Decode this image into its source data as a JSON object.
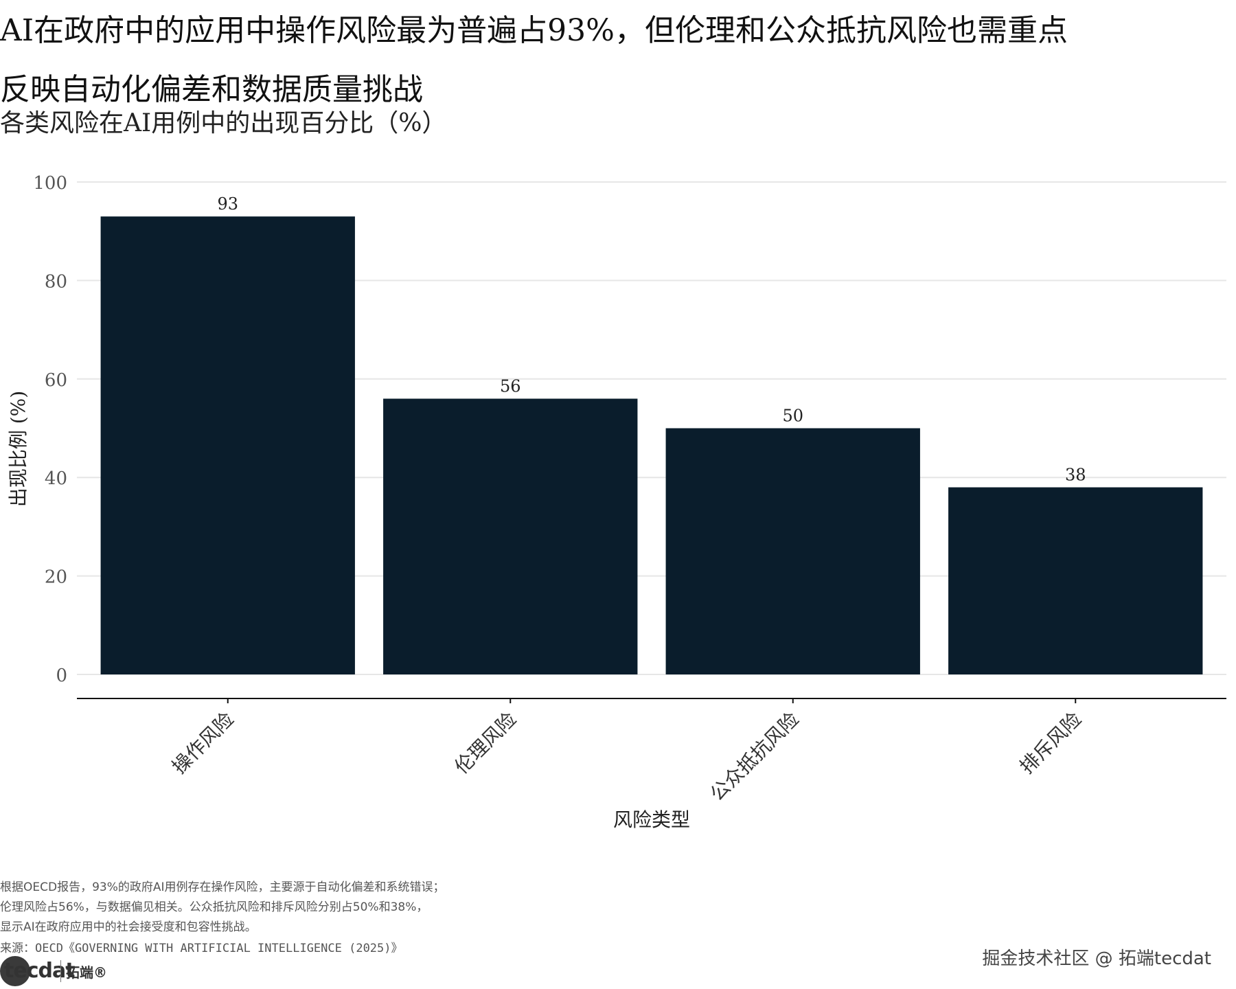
{
  "title_lines": [
    "AI在政府中的应用中操作风险最为普遍占93%，但伦理和公众抵抗风险也需重点",
    "反映自动化偏差和数据质量挑战"
  ],
  "subtitle": "各类风险在AI用例中的出现百分比（%）",
  "caption_lines": [
    "根据OECD报告，93%的政府AI用例存在操作风险，主要源于自动化偏差和系统错误；",
    "伦理风险占56%，与数据偏见相关。公众抵抗风险和排斥风险分别占50%和38%，",
    "显示AI在政府应用中的社会接受度和包容性挑战。"
  ],
  "source": "来源：OECD《GOVERNING WITH ARTIFICIAL INTELLIGENCE (2025)》",
  "watermark": "掘金技术社区 @ 拓端tecdat",
  "logo": {
    "word": "tecdat",
    "cn": "拓端®"
  },
  "chart_data": {
    "type": "bar",
    "categories": [
      "操作风险",
      "伦理风险",
      "公众抵抗风险",
      "排斥风险"
    ],
    "values": [
      93,
      56,
      50,
      38
    ],
    "data_labels": [
      "93",
      "56",
      "50",
      "38"
    ],
    "xlabel": "风险类型",
    "ylabel": "出现比例 (%)",
    "ylim": [
      0,
      100
    ],
    "yticks": [
      0,
      20,
      40,
      60,
      80,
      100
    ],
    "grid": true,
    "bar_color": "#0a1d2c",
    "grid_color": "#e6e6e6",
    "x_tick_rotation_deg": 45
  }
}
